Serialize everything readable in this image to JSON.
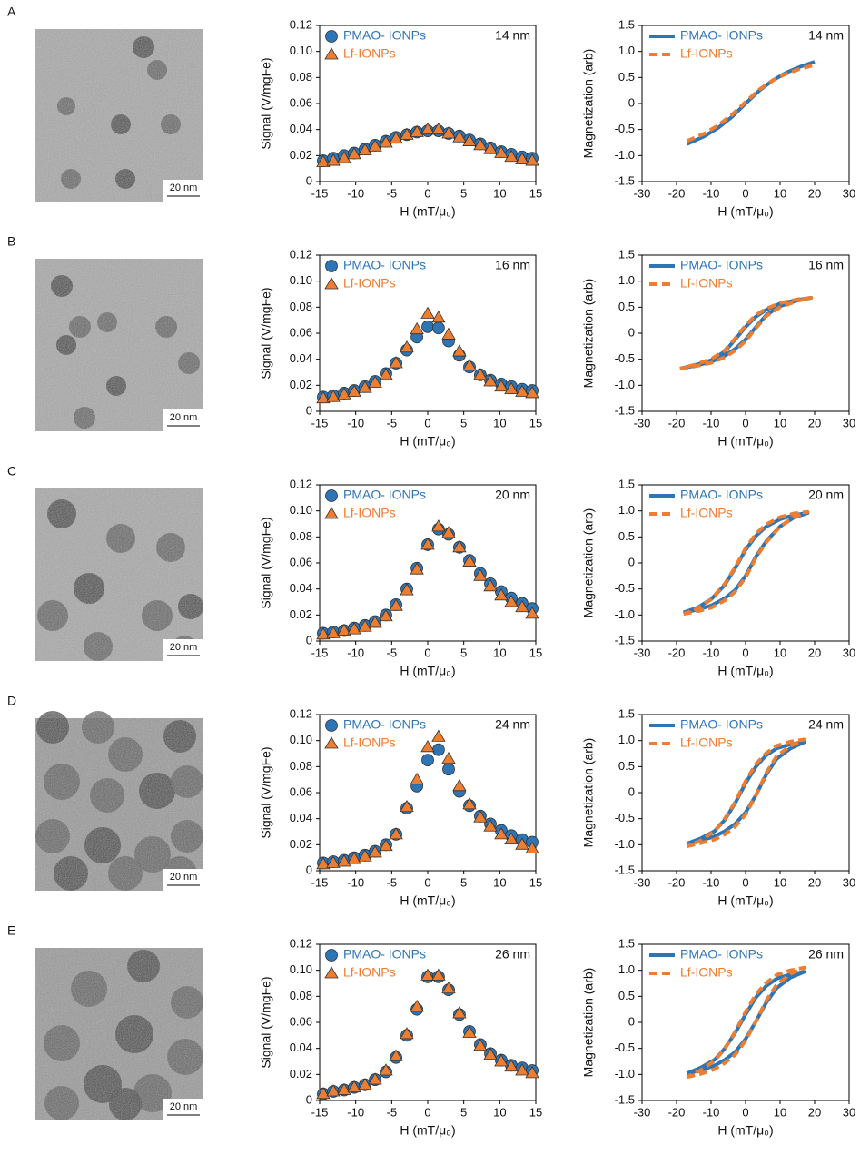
{
  "panels": [
    {
      "label": "A",
      "scale_bar": "20 nm"
    },
    {
      "label": "B",
      "scale_bar": "20 nm"
    },
    {
      "label": "C",
      "scale_bar": "20 nm"
    },
    {
      "label": "D",
      "scale_bar": "20 nm"
    },
    {
      "label": "E",
      "scale_bar": "20 nm"
    }
  ],
  "chart_data": [
    {
      "type": "scatter",
      "ylabel": "Signal (V/mgFe)",
      "xlabel": "H (mT/μ₀)",
      "annotation": "14 nm",
      "xlim": [
        -15,
        15
      ],
      "ylim": [
        0,
        0.12
      ],
      "xticks": [
        -15,
        -10,
        -5,
        0,
        5,
        10,
        15
      ],
      "yticks": [
        0,
        0.02,
        0.04,
        0.06,
        0.08,
        {
          "value": 0.1,
          "label": "0.10"
        },
        0.12
      ],
      "x": [
        -14.5,
        -13.1,
        -11.6,
        -10.2,
        -8.7,
        -7.3,
        -5.8,
        -4.4,
        -2.9,
        -1.5,
        0,
        1.5,
        2.9,
        4.4,
        5.8,
        7.3,
        8.7,
        10.2,
        11.6,
        13.1,
        14.5
      ],
      "series": [
        {
          "name": "PMAO- IONPs",
          "color": "#2e75b6",
          "marker": "circle",
          "values": [
            0.016,
            0.018,
            0.02,
            0.022,
            0.025,
            0.028,
            0.031,
            0.034,
            0.036,
            0.038,
            0.039,
            0.039,
            0.037,
            0.035,
            0.032,
            0.029,
            0.026,
            0.023,
            0.021,
            0.019,
            0.018
          ]
        },
        {
          "name": "Lf-IONPs",
          "color": "#ed7d31",
          "marker": "triangle",
          "values": [
            0.015,
            0.016,
            0.018,
            0.021,
            0.024,
            0.027,
            0.03,
            0.033,
            0.036,
            0.038,
            0.04,
            0.04,
            0.037,
            0.034,
            0.031,
            0.028,
            0.025,
            0.022,
            0.019,
            0.017,
            0.016
          ]
        }
      ]
    },
    {
      "type": "line",
      "ylabel": "Magnetization (arb)",
      "xlabel": "H (mT/μ₀)",
      "annotation": "14 nm",
      "xlim": [
        -30,
        30
      ],
      "ylim": [
        -1.5,
        1.5
      ],
      "xticks": [
        -30,
        -20,
        -10,
        0,
        10,
        20,
        30
      ],
      "yticks": [
        -1.5,
        {
          "value": -1,
          "label": "-1.0"
        },
        -0.5,
        0,
        0.5,
        {
          "value": 1,
          "label": "1.0"
        },
        1.5
      ],
      "x": [
        -17,
        -12,
        -8,
        -4,
        0,
        4,
        8,
        12,
        16,
        20
      ],
      "series": [
        {
          "name": "PMAO- IONPs",
          "color": "#2e75b6",
          "linestyle": "solid",
          "values": [
            -0.78,
            -0.63,
            -0.47,
            -0.26,
            0,
            0.25,
            0.45,
            0.6,
            0.71,
            0.8
          ]
        },
        {
          "name": "Lf-IONPs",
          "color": "#ed7d31",
          "linestyle": "dashed",
          "values": [
            -0.72,
            -0.58,
            -0.42,
            -0.22,
            0.03,
            0.27,
            0.45,
            0.58,
            0.67,
            0.74
          ]
        }
      ]
    },
    {
      "type": "scatter",
      "ylabel": "Signal (V/mgFe)",
      "xlabel": "H (mT/μ₀)",
      "annotation": "16 nm",
      "xlim": [
        -15,
        15
      ],
      "ylim": [
        0,
        0.12
      ],
      "xticks": [
        -15,
        -10,
        -5,
        0,
        5,
        10,
        15
      ],
      "yticks": [
        0,
        0.02,
        0.04,
        0.06,
        0.08,
        {
          "value": 0.1,
          "label": "0.10"
        },
        0.12
      ],
      "x": [
        -14.5,
        -13.1,
        -11.6,
        -10.2,
        -8.7,
        -7.3,
        -5.8,
        -4.4,
        -2.9,
        -1.5,
        0,
        1.5,
        2.9,
        4.4,
        5.8,
        7.3,
        8.7,
        10.2,
        11.6,
        13.1,
        14.5
      ],
      "series": [
        {
          "name": "PMAO- IONPs",
          "color": "#2e75b6",
          "marker": "circle",
          "values": [
            0.011,
            0.012,
            0.014,
            0.016,
            0.019,
            0.023,
            0.029,
            0.037,
            0.047,
            0.057,
            0.065,
            0.064,
            0.054,
            0.043,
            0.034,
            0.028,
            0.024,
            0.021,
            0.019,
            0.017,
            0.016
          ]
        },
        {
          "name": "Lf-IONPs",
          "color": "#ed7d31",
          "marker": "triangle",
          "values": [
            0.01,
            0.011,
            0.013,
            0.015,
            0.018,
            0.022,
            0.028,
            0.037,
            0.049,
            0.063,
            0.075,
            0.072,
            0.059,
            0.046,
            0.035,
            0.028,
            0.023,
            0.019,
            0.017,
            0.015,
            0.014
          ]
        }
      ]
    },
    {
      "type": "line",
      "ylabel": "Magnetization (arb)",
      "xlabel": "H (mT/μ₀)",
      "annotation": "16 nm",
      "xlim": [
        -30,
        30
      ],
      "ylim": [
        -1.5,
        1.5
      ],
      "xticks": [
        -30,
        -20,
        -10,
        0,
        10,
        20,
        30
      ],
      "yticks": [
        -1.5,
        {
          "value": -1,
          "label": "-1.0"
        },
        -0.5,
        0,
        0.5,
        {
          "value": 1,
          "label": "1.0"
        },
        1.5
      ],
      "x": [
        -19,
        -15,
        -10,
        -6,
        -3,
        0,
        3,
        6,
        10,
        15,
        19,
        15,
        10,
        6,
        3,
        0,
        -3,
        -6,
        -10,
        -15,
        -19
      ],
      "series": [
        {
          "name": "PMAO- IONPs",
          "color": "#2e75b6",
          "linestyle": "solid",
          "values": [
            -0.68,
            -0.63,
            -0.55,
            -0.43,
            -0.3,
            -0.12,
            0.12,
            0.35,
            0.52,
            0.63,
            0.68,
            0.64,
            0.57,
            0.45,
            0.32,
            0.12,
            -0.12,
            -0.35,
            -0.52,
            -0.62,
            -0.68
          ]
        },
        {
          "name": "Lf-IONPs",
          "color": "#ed7d31",
          "linestyle": "dashed",
          "values": [
            -0.68,
            -0.64,
            -0.57,
            -0.46,
            -0.33,
            -0.15,
            0.1,
            0.33,
            0.5,
            0.62,
            0.68,
            0.65,
            0.58,
            0.47,
            0.35,
            0.15,
            -0.1,
            -0.33,
            -0.5,
            -0.61,
            -0.68
          ]
        }
      ]
    },
    {
      "type": "scatter",
      "ylabel": "Signal (V/mgFe)",
      "xlabel": "H (mT/μ₀)",
      "annotation": "20 nm",
      "xlim": [
        -15,
        15
      ],
      "ylim": [
        0,
        0.12
      ],
      "xticks": [
        -15,
        -10,
        -5,
        0,
        5,
        10,
        15
      ],
      "yticks": [
        0,
        0.02,
        0.04,
        0.06,
        0.08,
        {
          "value": 0.1,
          "label": "0.10"
        },
        0.12
      ],
      "x": [
        -14.5,
        -13.1,
        -11.6,
        -10.2,
        -8.7,
        -7.3,
        -5.8,
        -4.4,
        -2.9,
        -1.5,
        0,
        1.5,
        2.9,
        4.4,
        5.8,
        7.3,
        8.7,
        10.2,
        11.6,
        13.1,
        14.5
      ],
      "series": [
        {
          "name": "PMAO- IONPs",
          "color": "#2e75b6",
          "marker": "circle",
          "values": [
            0.006,
            0.007,
            0.008,
            0.01,
            0.012,
            0.015,
            0.02,
            0.028,
            0.04,
            0.056,
            0.074,
            0.086,
            0.082,
            0.072,
            0.062,
            0.052,
            0.044,
            0.038,
            0.033,
            0.029,
            0.025
          ]
        },
        {
          "name": "Lf-IONPs",
          "color": "#ed7d31",
          "marker": "triangle",
          "values": [
            0.005,
            0.006,
            0.008,
            0.009,
            0.011,
            0.014,
            0.019,
            0.027,
            0.039,
            0.055,
            0.074,
            0.088,
            0.083,
            0.072,
            0.061,
            0.05,
            0.042,
            0.035,
            0.03,
            0.026,
            0.021
          ]
        }
      ]
    },
    {
      "type": "line",
      "ylabel": "Magnetization (arb)",
      "xlabel": "H (mT/μ₀)",
      "annotation": "20 nm",
      "xlim": [
        -30,
        30
      ],
      "ylim": [
        -1.5,
        1.5
      ],
      "xticks": [
        -30,
        -20,
        -10,
        0,
        10,
        20,
        30
      ],
      "yticks": [
        -1.5,
        {
          "value": -1,
          "label": "-1.0"
        },
        -0.5,
        0,
        0.5,
        {
          "value": 1,
          "label": "1.0"
        },
        1.5
      ],
      "x": [
        -18,
        -14,
        -10,
        -6,
        -3,
        0,
        3,
        6,
        10,
        14,
        18,
        14,
        10,
        6,
        3,
        0,
        -3,
        -6,
        -10,
        -14,
        -18
      ],
      "series": [
        {
          "name": "PMAO- IONPs",
          "color": "#2e75b6",
          "linestyle": "solid",
          "values": [
            -0.95,
            -0.9,
            -0.82,
            -0.68,
            -0.52,
            -0.25,
            0.12,
            0.42,
            0.7,
            0.87,
            0.96,
            0.92,
            0.84,
            0.7,
            0.52,
            0.25,
            -0.1,
            -0.42,
            -0.7,
            -0.86,
            -0.95
          ]
        },
        {
          "name": "Lf-IONPs",
          "color": "#ed7d31",
          "linestyle": "dashed",
          "values": [
            -0.98,
            -0.93,
            -0.86,
            -0.72,
            -0.55,
            -0.28,
            0.1,
            0.4,
            0.7,
            0.88,
            0.98,
            0.95,
            0.88,
            0.74,
            0.56,
            0.28,
            -0.08,
            -0.4,
            -0.7,
            -0.88,
            -0.98
          ]
        }
      ]
    },
    {
      "type": "scatter",
      "ylabel": "Signal (V/mgFe)",
      "xlabel": "H (mT/μ₀)",
      "annotation": "24 nm",
      "xlim": [
        -15,
        15
      ],
      "ylim": [
        0,
        0.12
      ],
      "xticks": [
        -15,
        -10,
        -5,
        0,
        5,
        10,
        15
      ],
      "yticks": [
        0,
        0.02,
        0.04,
        0.06,
        0.08,
        {
          "value": 0.1,
          "label": "0.10"
        },
        0.12
      ],
      "x": [
        -14.5,
        -13.1,
        -11.6,
        -10.2,
        -8.7,
        -7.3,
        -5.8,
        -4.4,
        -2.9,
        -1.5,
        0,
        1.5,
        2.9,
        4.4,
        5.8,
        7.3,
        8.7,
        10.2,
        11.6,
        13.1,
        14.5
      ],
      "series": [
        {
          "name": "PMAO- IONPs",
          "color": "#2e75b6",
          "marker": "circle",
          "values": [
            0.006,
            0.007,
            0.008,
            0.01,
            0.012,
            0.015,
            0.02,
            0.028,
            0.048,
            0.065,
            0.085,
            0.093,
            0.078,
            0.061,
            0.05,
            0.042,
            0.036,
            0.031,
            0.027,
            0.024,
            0.022
          ]
        },
        {
          "name": "Lf-IONPs",
          "color": "#ed7d31",
          "marker": "triangle",
          "values": [
            0.005,
            0.006,
            0.007,
            0.009,
            0.011,
            0.014,
            0.019,
            0.028,
            0.049,
            0.07,
            0.095,
            0.103,
            0.086,
            0.065,
            0.051,
            0.041,
            0.034,
            0.028,
            0.024,
            0.02,
            0.017
          ]
        }
      ]
    },
    {
      "type": "line",
      "ylabel": "Magnetization (arb)",
      "xlabel": "H (mT/μ₀)",
      "annotation": "24 nm",
      "xlim": [
        -30,
        30
      ],
      "ylim": [
        -1.5,
        1.5
      ],
      "xticks": [
        -30,
        -20,
        -10,
        0,
        10,
        20,
        30
      ],
      "yticks": [
        -1.5,
        {
          "value": -1,
          "label": "-1.0"
        },
        -0.5,
        0,
        0.5,
        {
          "value": 1,
          "label": "1.0"
        },
        1.5
      ],
      "x": [
        -17,
        -13,
        -9,
        -6,
        -3,
        0,
        3,
        6,
        9,
        13,
        17,
        13,
        9,
        6,
        3,
        0,
        -3,
        -6,
        -9,
        -13,
        -17
      ],
      "series": [
        {
          "name": "PMAO- IONPs",
          "color": "#2e75b6",
          "linestyle": "solid",
          "values": [
            -0.98,
            -0.92,
            -0.84,
            -0.74,
            -0.6,
            -0.38,
            -0.05,
            0.35,
            0.65,
            0.85,
            0.97,
            0.93,
            0.85,
            0.72,
            0.5,
            0.18,
            -0.2,
            -0.52,
            -0.74,
            -0.88,
            -0.98
          ]
        },
        {
          "name": "Lf-IONPs",
          "color": "#ed7d31",
          "linestyle": "dashed",
          "values": [
            -1.03,
            -0.97,
            -0.9,
            -0.8,
            -0.65,
            -0.42,
            -0.05,
            0.38,
            0.7,
            0.9,
            1.02,
            0.98,
            0.9,
            0.76,
            0.55,
            0.22,
            -0.18,
            -0.5,
            -0.74,
            -0.92,
            -1.03
          ]
        }
      ]
    },
    {
      "type": "scatter",
      "ylabel": "Signal (V/mgFe)",
      "xlabel": "H (mT/μ₀)",
      "annotation": "26 nm",
      "xlim": [
        -15,
        15
      ],
      "ylim": [
        0,
        0.12
      ],
      "xticks": [
        -15,
        -10,
        -5,
        0,
        5,
        10,
        15
      ],
      "yticks": [
        0,
        0.02,
        0.04,
        0.06,
        0.08,
        {
          "value": 0.1,
          "label": "0.10"
        },
        0.12
      ],
      "x": [
        -14.5,
        -13.1,
        -11.6,
        -10.2,
        -8.7,
        -7.3,
        -5.8,
        -4.4,
        -2.9,
        -1.5,
        0,
        1.5,
        2.9,
        4.4,
        5.8,
        7.3,
        8.7,
        10.2,
        11.6,
        13.1,
        14.5
      ],
      "series": [
        {
          "name": "PMAO- IONPs",
          "color": "#2e75b6",
          "marker": "circle",
          "values": [
            0.005,
            0.007,
            0.008,
            0.01,
            0.012,
            0.016,
            0.022,
            0.033,
            0.05,
            0.07,
            0.095,
            0.095,
            0.085,
            0.066,
            0.053,
            0.043,
            0.036,
            0.031,
            0.027,
            0.025,
            0.023
          ]
        },
        {
          "name": "Lf-IONPs",
          "color": "#ed7d31",
          "marker": "triangle",
          "values": [
            0.005,
            0.007,
            0.008,
            0.01,
            0.012,
            0.016,
            0.023,
            0.034,
            0.051,
            0.072,
            0.096,
            0.096,
            0.086,
            0.067,
            0.052,
            0.042,
            0.035,
            0.03,
            0.026,
            0.023,
            0.021
          ]
        }
      ]
    },
    {
      "type": "line",
      "ylabel": "Magnetization (arb)",
      "xlabel": "H (mT/μ₀)",
      "annotation": "26 nm",
      "xlim": [
        -30,
        30
      ],
      "ylim": [
        -1.5,
        1.5
      ],
      "xticks": [
        -30,
        -20,
        -10,
        0,
        10,
        20,
        30
      ],
      "yticks": [
        -1.5,
        {
          "value": -1,
          "label": "-1.0"
        },
        -0.5,
        0,
        0.5,
        {
          "value": 1,
          "label": "1.0"
        },
        1.5
      ],
      "x": [
        -17,
        -13,
        -9,
        -6,
        -3,
        0,
        3,
        6,
        9,
        13,
        17,
        13,
        9,
        6,
        3,
        0,
        -3,
        -6,
        -9,
        -13,
        -17
      ],
      "series": [
        {
          "name": "PMAO- IONPs",
          "color": "#2e75b6",
          "linestyle": "solid",
          "values": [
            -0.98,
            -0.92,
            -0.83,
            -0.72,
            -0.57,
            -0.32,
            0.02,
            0.38,
            0.66,
            0.86,
            0.97,
            0.92,
            0.84,
            0.7,
            0.48,
            0.15,
            -0.2,
            -0.5,
            -0.72,
            -0.87,
            -0.98
          ]
        },
        {
          "name": "Lf-IONPs",
          "color": "#ed7d31",
          "linestyle": "dashed",
          "values": [
            -1.05,
            -0.99,
            -0.9,
            -0.78,
            -0.62,
            -0.35,
            0.02,
            0.42,
            0.72,
            0.93,
            1.05,
            1,
            0.91,
            0.76,
            0.54,
            0.2,
            -0.18,
            -0.5,
            -0.74,
            -0.92,
            -1.05
          ]
        }
      ]
    }
  ]
}
